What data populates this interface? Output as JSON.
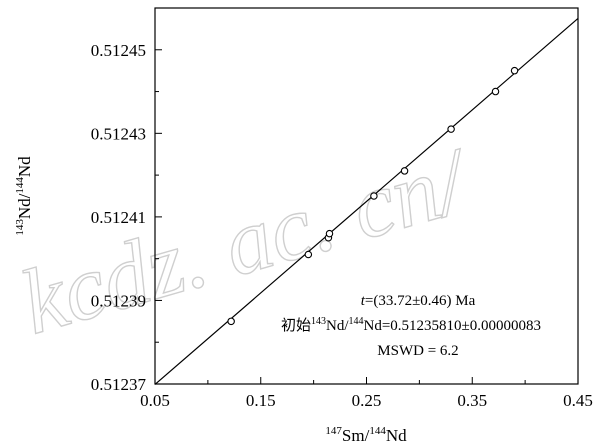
{
  "watermark": "kcdz. ac. cn/",
  "chart_data": {
    "type": "scatter",
    "xlabel": {
      "sup1": "147",
      "base1": "Sm/",
      "sup2": "144",
      "base2": "Nd"
    },
    "ylabel": {
      "sup1": "143",
      "base1": "Nd/",
      "sup2": "144",
      "base2": "Nd"
    },
    "xlim": [
      0.05,
      0.45
    ],
    "ylim": [
      0.51237,
      0.51246
    ],
    "xticks": [
      0.05,
      0.15,
      0.25,
      0.35,
      0.45
    ],
    "xtick_labels": [
      "0.05",
      "0.15",
      "0.25",
      "0.35",
      "0.45"
    ],
    "yticks": [
      0.51237,
      0.51239,
      0.51241,
      0.51243,
      0.51245
    ],
    "ytick_labels": [
      "0.51237",
      "0.51239",
      "0.51241",
      "0.51243",
      "0.51245"
    ],
    "points": [
      {
        "x": 0.122,
        "y": 0.512385
      },
      {
        "x": 0.195,
        "y": 0.512401
      },
      {
        "x": 0.214,
        "y": 0.512405
      },
      {
        "x": 0.215,
        "y": 0.512406
      },
      {
        "x": 0.257,
        "y": 0.512415
      },
      {
        "x": 0.286,
        "y": 0.512421
      },
      {
        "x": 0.33,
        "y": 0.512431
      },
      {
        "x": 0.372,
        "y": 0.51244
      },
      {
        "x": 0.39,
        "y": 0.512445
      }
    ],
    "isochron": {
      "x": [
        0.05,
        0.45
      ],
      "y": [
        0.5123699,
        0.5124575
      ]
    },
    "annotations": {
      "line1": {
        "t": "t",
        "rest": "=(33.72±0.46) Ma"
      },
      "line2": {
        "pre": "初始",
        "sup1": "143",
        "mid": "Nd/",
        "sup2": "144",
        "post": "Nd=0.51235810±0.00000083"
      },
      "line3": "MSWD = 6.2"
    }
  }
}
